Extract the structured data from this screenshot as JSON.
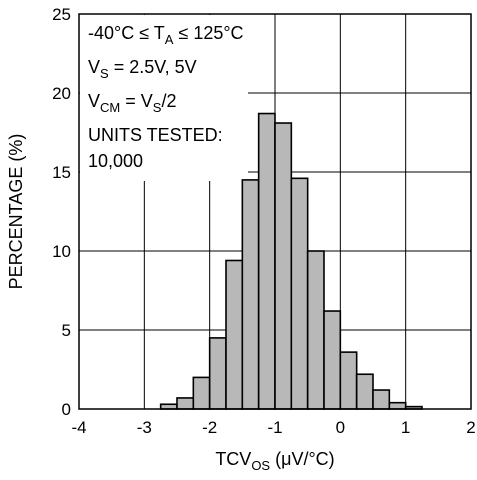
{
  "chart_data": {
    "type": "bar",
    "title": "",
    "xlabel": {
      "main": "TCV",
      "sub": "OS",
      "unit": " (μV/°C)"
    },
    "ylabel": "PERCENTAGE (%)",
    "xlim": [
      -4,
      2
    ],
    "ylim": [
      0,
      25
    ],
    "x_ticks": [
      -4,
      -3,
      -2,
      -1,
      0,
      1,
      2
    ],
    "y_ticks": [
      0,
      5,
      10,
      15,
      20,
      25
    ],
    "bin_width": 0.25,
    "bar_color": "#b8b8b8",
    "grid": true,
    "bins": [
      {
        "x0": -2.75,
        "value": 0.3
      },
      {
        "x0": -2.5,
        "value": 0.7
      },
      {
        "x0": -2.25,
        "value": 2.0
      },
      {
        "x0": -2.0,
        "value": 4.5
      },
      {
        "x0": -1.75,
        "value": 9.4
      },
      {
        "x0": -1.5,
        "value": 14.5
      },
      {
        "x0": -1.25,
        "value": 18.7
      },
      {
        "x0": -1.0,
        "value": 18.1
      },
      {
        "x0": -0.75,
        "value": 14.6
      },
      {
        "x0": -0.5,
        "value": 10.0
      },
      {
        "x0": -0.25,
        "value": 6.2
      },
      {
        "x0": 0.0,
        "value": 3.6
      },
      {
        "x0": 0.25,
        "value": 2.2
      },
      {
        "x0": 0.5,
        "value": 1.2
      },
      {
        "x0": 0.75,
        "value": 0.4
      },
      {
        "x0": 1.0,
        "value": 0.15
      }
    ],
    "annotations": [
      {
        "parts": [
          {
            "t": "-40°C ≤ T"
          },
          {
            "t": "A",
            "sub": true
          },
          {
            "t": " ≤ 125°C"
          }
        ]
      },
      {
        "parts": [
          {
            "t": "V"
          },
          {
            "t": "S",
            "sub": true
          },
          {
            "t": " = 2.5V, 5V"
          }
        ]
      },
      {
        "parts": [
          {
            "t": "V"
          },
          {
            "t": "CM",
            "sub": true
          },
          {
            "t": " = V"
          },
          {
            "t": "S",
            "sub": true
          },
          {
            "t": "/2"
          }
        ]
      },
      {
        "parts": [
          {
            "t": "UNITS TESTED:"
          }
        ]
      },
      {
        "parts": [
          {
            "t": "10,000"
          }
        ]
      }
    ]
  }
}
